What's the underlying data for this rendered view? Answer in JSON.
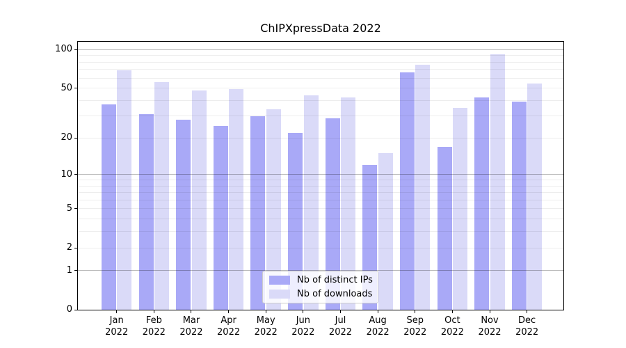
{
  "chart_data": {
    "type": "bar",
    "title": "ChIPXpressData 2022",
    "categories": [
      "Jan",
      "Feb",
      "Mar",
      "Apr",
      "May",
      "Jun",
      "Jul",
      "Aug",
      "Sep",
      "Oct",
      "Nov",
      "Dec"
    ],
    "year_label": "2022",
    "series": [
      {
        "name": "Nb of distinct IPs",
        "color": "#a9a9f7",
        "values": [
          37,
          31,
          28,
          25,
          30,
          22,
          29,
          12,
          66,
          17,
          42,
          39
        ]
      },
      {
        "name": "Nb of downloads",
        "color": "#dadaf8",
        "values": [
          69,
          56,
          48,
          49,
          34,
          44,
          42,
          15,
          76,
          35,
          92,
          54
        ]
      }
    ],
    "xlabel": "",
    "ylabel": "",
    "yscale": "log1p",
    "ylim": [
      0,
      115
    ],
    "y_ticks": [
      0,
      1,
      2,
      5,
      10,
      20,
      50,
      100
    ],
    "grid_major": [
      1,
      10,
      100
    ],
    "grid_minor": [
      2,
      3,
      4,
      5,
      6,
      7,
      8,
      9,
      20,
      30,
      40,
      50,
      60,
      70,
      80,
      90
    ],
    "grid": true,
    "legend_position": "lower center"
  }
}
